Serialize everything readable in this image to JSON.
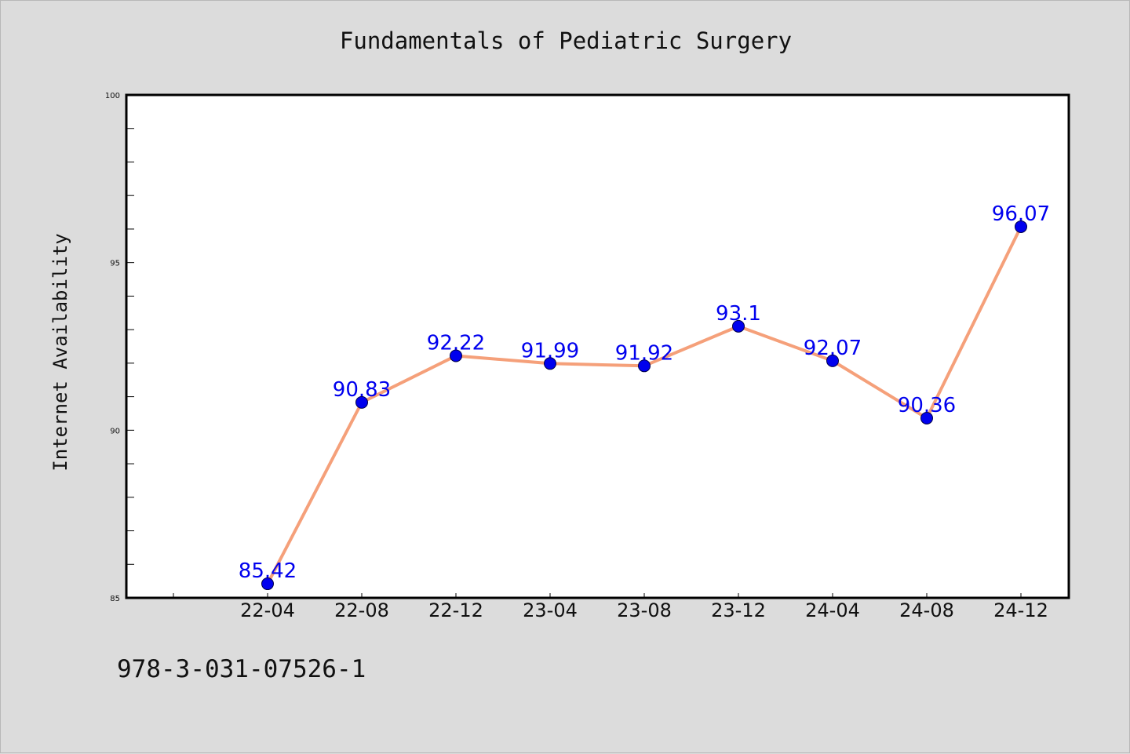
{
  "chart_data": {
    "type": "line",
    "title": "Fundamentals of Pediatric Surgery",
    "xlabel": "",
    "ylabel": "Internet Availability",
    "categories": [
      "22-04",
      "22-08",
      "22-12",
      "23-04",
      "23-08",
      "23-12",
      "24-04",
      "24-08",
      "24-12"
    ],
    "series": [
      {
        "values": [
          85.42,
          90.83,
          92.22,
          91.99,
          91.92,
          93.1,
          92.07,
          90.36,
          96.07
        ],
        "data_labels": [
          "85.42",
          "90.83",
          "92.22",
          "91.99",
          "91.92",
          "93.1",
          "92.07",
          "90.36",
          "96.07"
        ],
        "line_color": "#f5a07a",
        "marker_color": "#0000ee",
        "label_color": "#0000ee"
      }
    ],
    "ylim": [
      85,
      100
    ],
    "y_major_ticks": [
      85,
      90,
      95,
      100
    ],
    "grid": false,
    "legend": "none"
  },
  "footer_text": "978-3-031-07526-1",
  "colors": {
    "background": "#dcdcdc",
    "plot_background": "#ffffff",
    "axes": "#000000"
  }
}
